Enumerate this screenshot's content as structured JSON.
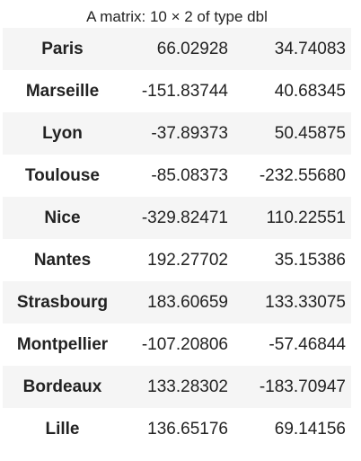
{
  "caption": "A matrix: 10 × 2 of type dbl",
  "rows": [
    {
      "name": "Paris",
      "v1": "66.02928",
      "v2": "34.74083"
    },
    {
      "name": "Marseille",
      "v1": "-151.83744",
      "v2": "40.68345"
    },
    {
      "name": "Lyon",
      "v1": "-37.89373",
      "v2": "50.45875"
    },
    {
      "name": "Toulouse",
      "v1": "-85.08373",
      "v2": "-232.55680"
    },
    {
      "name": "Nice",
      "v1": "-329.82471",
      "v2": "110.22551"
    },
    {
      "name": "Nantes",
      "v1": "192.27702",
      "v2": "35.15386"
    },
    {
      "name": "Strasbourg",
      "v1": "183.60659",
      "v2": "133.33075"
    },
    {
      "name": "Montpellier",
      "v1": "-107.20806",
      "v2": "-57.46844"
    },
    {
      "name": "Bordeaux",
      "v1": "133.28302",
      "v2": "-183.70947"
    },
    {
      "name": "Lille",
      "v1": "136.65176",
      "v2": "69.14156"
    }
  ]
}
